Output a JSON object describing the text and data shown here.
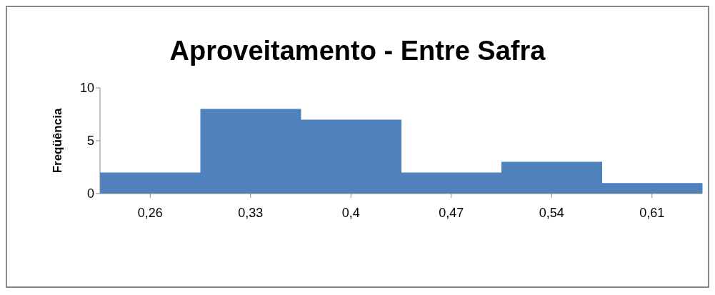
{
  "chart_data": {
    "type": "bar",
    "title": "Aproveitamento - Entre Safra",
    "ylabel": "Freqüência",
    "categories": [
      "0,26",
      "0,33",
      "0,4",
      "0,47",
      "0,54",
      "0,61"
    ],
    "values": [
      2,
      8,
      7,
      2,
      3,
      1
    ],
    "color": "#4f81bd",
    "ylim": [
      0,
      10
    ],
    "yticks": [
      0,
      5,
      10
    ],
    "grid": false,
    "legend": false
  }
}
